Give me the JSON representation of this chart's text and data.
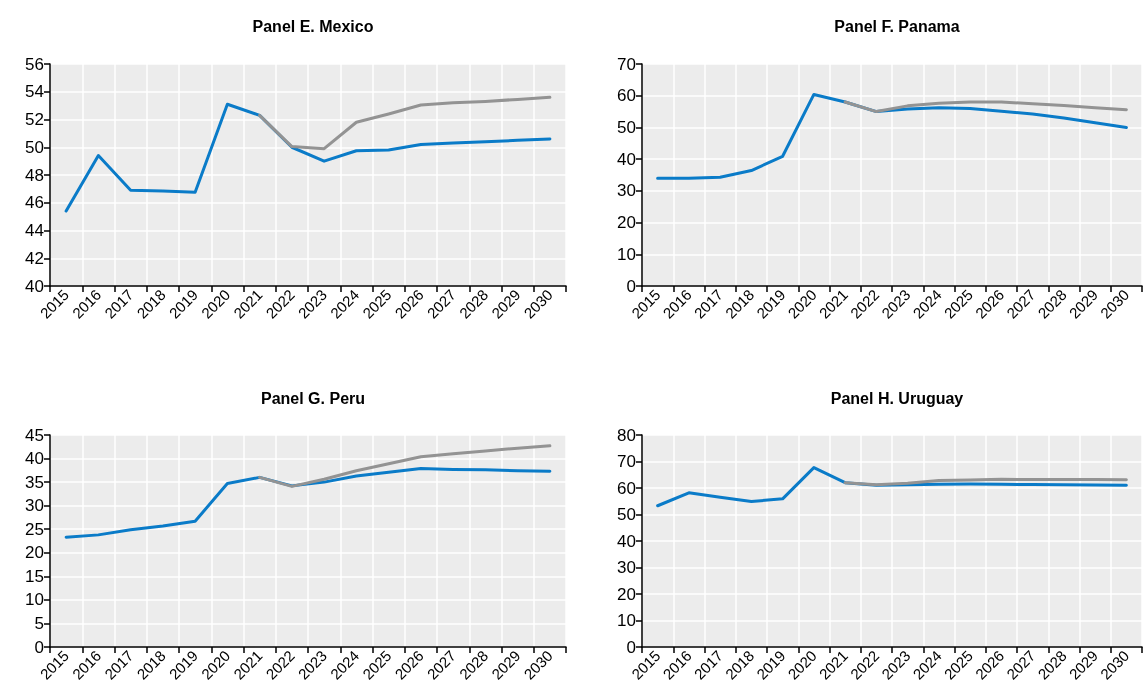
{
  "chart_data": [
    {
      "type": "line",
      "title": "Panel E. Mexico",
      "categories": [
        "2015",
        "2016",
        "2017",
        "2018",
        "2019",
        "2020",
        "2021",
        "2022",
        "2023",
        "2024",
        "2025",
        "2026",
        "2027",
        "2028",
        "2029",
        "2030"
      ],
      "series": [
        {
          "color": "#0a7bc8",
          "values": [
            45.4,
            49.4,
            46.9,
            46.85,
            46.75,
            53.1,
            52.3,
            50.0,
            49.0,
            49.75,
            49.8,
            50.2,
            50.3,
            50.4,
            50.5,
            50.6
          ]
        },
        {
          "color": "#939393",
          "values": [
            null,
            null,
            null,
            null,
            null,
            null,
            52.3,
            50.05,
            49.9,
            51.8,
            52.4,
            53.05,
            53.2,
            53.3,
            53.45,
            53.6
          ]
        }
      ],
      "ylim": [
        40,
        56
      ],
      "yticks": [
        40,
        42,
        44,
        46,
        48,
        50,
        52,
        54,
        56
      ],
      "grid": true,
      "marker": "none"
    },
    {
      "type": "line",
      "title": "Panel F. Panama",
      "categories": [
        "2015",
        "2016",
        "2017",
        "2018",
        "2019",
        "2020",
        "2021",
        "2022",
        "2023",
        "2024",
        "2025",
        "2026",
        "2027",
        "2028",
        "2029",
        "2030"
      ],
      "series": [
        {
          "color": "#0a7bc8",
          "values": [
            34.0,
            34.0,
            34.3,
            36.4,
            40.9,
            60.4,
            58.0,
            55.0,
            55.8,
            56.2,
            56.0,
            55.1,
            54.2,
            53.0,
            51.5,
            50.0
          ]
        },
        {
          "color": "#939393",
          "values": [
            null,
            null,
            null,
            null,
            null,
            null,
            58.0,
            55.0,
            56.8,
            57.6,
            58.0,
            58.0,
            57.5,
            56.9,
            56.2,
            55.6
          ]
        }
      ],
      "ylim": [
        0,
        70
      ],
      "yticks": [
        0,
        10,
        20,
        30,
        40,
        50,
        60,
        70
      ],
      "grid": true,
      "marker": "none"
    },
    {
      "type": "line",
      "title": "Panel G. Peru",
      "categories": [
        "2015",
        "2016",
        "2017",
        "2018",
        "2019",
        "2020",
        "2021",
        "2022",
        "2023",
        "2024",
        "2025",
        "2026",
        "2027",
        "2028",
        "2029",
        "2030"
      ],
      "series": [
        {
          "color": "#0a7bc8",
          "values": [
            23.3,
            23.8,
            24.9,
            25.7,
            26.7,
            34.7,
            36.0,
            34.2,
            35.0,
            36.3,
            37.1,
            37.9,
            37.7,
            37.6,
            37.4,
            37.3
          ]
        },
        {
          "color": "#939393",
          "values": [
            null,
            null,
            null,
            null,
            null,
            null,
            36.0,
            34.1,
            35.6,
            37.4,
            38.9,
            40.4,
            41.0,
            41.6,
            42.2,
            42.7
          ]
        }
      ],
      "ylim": [
        0,
        45
      ],
      "yticks": [
        0,
        5,
        10,
        15,
        20,
        25,
        30,
        35,
        40,
        45
      ],
      "grid": true,
      "marker": "none"
    },
    {
      "type": "line",
      "title": "Panel H. Uruguay",
      "categories": [
        "2015",
        "2016",
        "2017",
        "2018",
        "2019",
        "2020",
        "2021",
        "2022",
        "2023",
        "2024",
        "2025",
        "2026",
        "2027",
        "2028",
        "2029",
        "2030"
      ],
      "series": [
        {
          "color": "#0a7bc8",
          "values": [
            53.3,
            58.2,
            56.5,
            54.9,
            55.9,
            67.7,
            62.0,
            61.0,
            61.2,
            61.4,
            61.5,
            61.4,
            61.3,
            61.2,
            61.1,
            61.0
          ]
        },
        {
          "color": "#939393",
          "values": [
            null,
            null,
            null,
            null,
            null,
            null,
            62.0,
            61.2,
            61.8,
            62.8,
            63.0,
            63.3,
            63.2,
            63.2,
            63.2,
            63.1
          ]
        }
      ],
      "ylim": [
        0,
        80
      ],
      "yticks": [
        0,
        10,
        20,
        30,
        40,
        50,
        60,
        70,
        80
      ],
      "grid": true,
      "marker": "none"
    }
  ]
}
